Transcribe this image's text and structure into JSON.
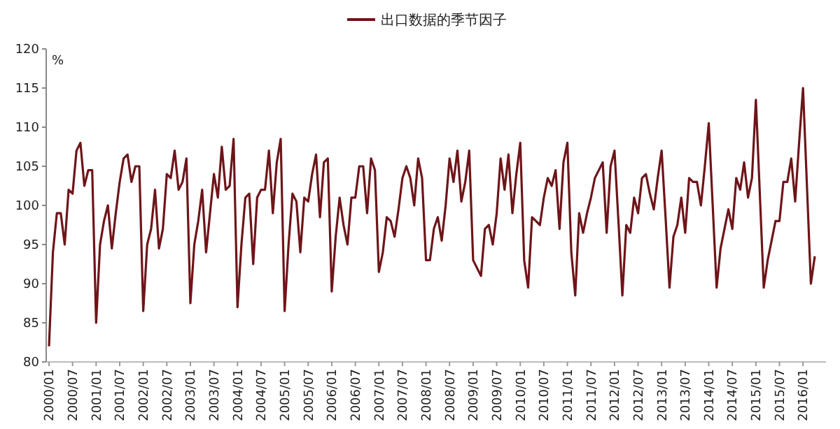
{
  "chart_data": {
    "type": "line",
    "ylabel": "%",
    "legend": "top",
    "ylim": [
      80,
      120
    ],
    "yticks": [
      80,
      85,
      90,
      95,
      100,
      105,
      110,
      115,
      120
    ],
    "grid": false,
    "marker": "none",
    "line_style": "solid",
    "categories": [
      "2000/01",
      null,
      null,
      null,
      null,
      null,
      "2000/07",
      null,
      null,
      null,
      null,
      null,
      "2001/01",
      null,
      null,
      null,
      null,
      null,
      "2001/07",
      null,
      null,
      null,
      null,
      null,
      "2002/01",
      null,
      null,
      null,
      null,
      null,
      "2002/07",
      null,
      null,
      null,
      null,
      null,
      "2003/01",
      null,
      null,
      null,
      null,
      null,
      "2003/07",
      null,
      null,
      null,
      null,
      null,
      "2004/01",
      null,
      null,
      null,
      null,
      null,
      "2004/07",
      null,
      null,
      null,
      null,
      null,
      "2005/01",
      null,
      null,
      null,
      null,
      null,
      "2005/07",
      null,
      null,
      null,
      null,
      null,
      "2006/01",
      null,
      null,
      null,
      null,
      null,
      "2006/07",
      null,
      null,
      null,
      null,
      null,
      "2007/01",
      null,
      null,
      null,
      null,
      null,
      "2007/07",
      null,
      null,
      null,
      null,
      null,
      "2008/01",
      null,
      null,
      null,
      null,
      null,
      "2008/07",
      null,
      null,
      null,
      null,
      null,
      "2009/01",
      null,
      null,
      null,
      null,
      null,
      "2009/07",
      null,
      null,
      null,
      null,
      null,
      "2010/01",
      null,
      null,
      null,
      null,
      null,
      "2010/07",
      null,
      null,
      null,
      null,
      null,
      "2011/01",
      null,
      null,
      null,
      null,
      null,
      "2011/07",
      null,
      null,
      null,
      null,
      null,
      "2012/01",
      null,
      null,
      null,
      null,
      null,
      "2012/07",
      null,
      null,
      null,
      null,
      null,
      "2013/01",
      null,
      null,
      null,
      null,
      null,
      "2013/07",
      null,
      null,
      null,
      null,
      null,
      "2014/01",
      null,
      null,
      null,
      null,
      null,
      "2014/07",
      null,
      null,
      null,
      null,
      null,
      "2015/01",
      null,
      null,
      null,
      null,
      null,
      "2015/07",
      null,
      null,
      null,
      null,
      null,
      "2016/01",
      null,
      null,
      null
    ],
    "series": [
      {
        "name": "出口数据的季节因子",
        "color": "#6e1519",
        "values": [
          82,
          94,
          99,
          99,
          95,
          102,
          101.5,
          107,
          108,
          102.5,
          104.5,
          104.5,
          85,
          95,
          98,
          100,
          94.5,
          99,
          103,
          106,
          106.5,
          103,
          105,
          105,
          86.5,
          95,
          97,
          102,
          94.5,
          97,
          104,
          103.5,
          107,
          102,
          103,
          106,
          87.5,
          95,
          98,
          102,
          94,
          99,
          104,
          101,
          107.5,
          102,
          102.5,
          108.5,
          87,
          95,
          101,
          101.5,
          92.5,
          101,
          102,
          102,
          107,
          99,
          105.5,
          108.5,
          86.5,
          95,
          101.5,
          100.5,
          94,
          101,
          100.5,
          104,
          106.5,
          98.5,
          105.5,
          106,
          89,
          96,
          101,
          97.5,
          95,
          101,
          101,
          105,
          105,
          99,
          106,
          104.5,
          91.5,
          94,
          98.5,
          98,
          96,
          99.5,
          103.5,
          105,
          103.5,
          100,
          106,
          103.5,
          93,
          93,
          97,
          98.5,
          95.5,
          100,
          106,
          103,
          107,
          100.5,
          103,
          107,
          93,
          92,
          91,
          97,
          97.5,
          95,
          99,
          106,
          102,
          106.5,
          99,
          104,
          108,
          93,
          89.5,
          98.5,
          98,
          97.5,
          101,
          103.5,
          102.5,
          104.5,
          97,
          105.5,
          108,
          94,
          88.5,
          99,
          96.5,
          99,
          101,
          103.5,
          104.5,
          105.5,
          96.5,
          105,
          107,
          98,
          88.5,
          97.5,
          96.5,
          101,
          99,
          103.5,
          104,
          101.5,
          99.5,
          103.5,
          107,
          98.5,
          89.5,
          96,
          97.5,
          101,
          96.5,
          103.5,
          103,
          103,
          100,
          105,
          110.5,
          100,
          89.5,
          94.5,
          97,
          99.5,
          97,
          103.5,
          102,
          105.5,
          101,
          103.5,
          113.5,
          101.5,
          89.5,
          93,
          95.5,
          98,
          98,
          103,
          103,
          106,
          100.5,
          108,
          115,
          102.5,
          90,
          93.5
        ]
      }
    ]
  }
}
